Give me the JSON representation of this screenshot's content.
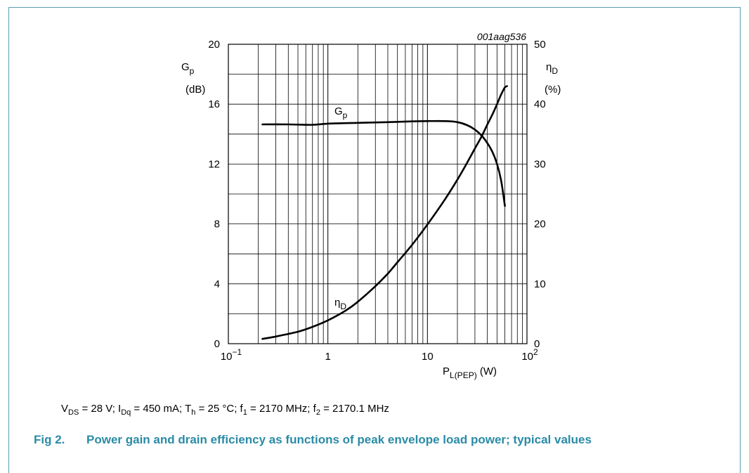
{
  "chart_data": {
    "type": "line",
    "figure_id": "001aag536",
    "x_axis": {
      "scale": "log",
      "range": [
        0.1,
        100
      ],
      "tick_labels": [
        {
          "value": 0.1,
          "base": "10",
          "exp": "−1"
        },
        {
          "value": 1,
          "base": "1",
          "exp": ""
        },
        {
          "value": 10,
          "base": "10",
          "exp": ""
        },
        {
          "value": 100,
          "base": "10",
          "exp": "2"
        }
      ],
      "label_main": "P",
      "label_sub": "L(PEP)",
      "label_unit": "(W)"
    },
    "y_left": {
      "range": [
        0,
        20
      ],
      "ticks": [
        0,
        4,
        8,
        12,
        16,
        20
      ],
      "label_main": "G",
      "label_sub": "p",
      "label_unit": "(dB)"
    },
    "y_right": {
      "range": [
        0,
        50
      ],
      "ticks": [
        0,
        10,
        20,
        30,
        40,
        50
      ],
      "label_main": "η",
      "label_sub": "D",
      "label_unit": "(%)"
    },
    "grid": true,
    "series": [
      {
        "name_main": "G",
        "name_sub": "p",
        "axis": "left",
        "points": [
          [
            0.22,
            14.65
          ],
          [
            0.4,
            14.65
          ],
          [
            0.7,
            14.62
          ],
          [
            1.0,
            14.7
          ],
          [
            2.0,
            14.75
          ],
          [
            4.0,
            14.8
          ],
          [
            7.0,
            14.85
          ],
          [
            10.0,
            14.87
          ],
          [
            15.0,
            14.87
          ],
          [
            20.0,
            14.8
          ],
          [
            25.0,
            14.6
          ],
          [
            30.0,
            14.3
          ],
          [
            35.0,
            13.9
          ],
          [
            40.0,
            13.4
          ],
          [
            45.0,
            12.8
          ],
          [
            50.0,
            12.0
          ],
          [
            55.0,
            10.9
          ],
          [
            60.0,
            9.2
          ]
        ]
      },
      {
        "name_main": "η",
        "name_sub": "D",
        "axis": "right",
        "points": [
          [
            0.22,
            0.8
          ],
          [
            0.3,
            1.2
          ],
          [
            0.5,
            2.0
          ],
          [
            0.7,
            2.8
          ],
          [
            1.0,
            3.9
          ],
          [
            1.5,
            5.5
          ],
          [
            2.0,
            7.0
          ],
          [
            3.0,
            9.6
          ],
          [
            4.0,
            11.7
          ],
          [
            5.0,
            13.6
          ],
          [
            7.0,
            16.5
          ],
          [
            10.0,
            19.9
          ],
          [
            15.0,
            24.1
          ],
          [
            20.0,
            27.4
          ],
          [
            25.0,
            30.2
          ],
          [
            30.0,
            32.6
          ],
          [
            35.0,
            34.6
          ],
          [
            40.0,
            36.6
          ],
          [
            45.0,
            38.3
          ],
          [
            50.0,
            40.0
          ],
          [
            55.0,
            41.6
          ],
          [
            60.0,
            42.8
          ],
          [
            63.0,
            43.0
          ]
        ]
      }
    ]
  },
  "conditions": {
    "vds_label": "V",
    "vds_sub": "DS",
    "vds_value": " = 28 V; ",
    "idq_label": "I",
    "idq_sub": "Dq",
    "idq_value": " = 450 mA; ",
    "th_label": "T",
    "th_sub": "h",
    "th_value": " = 25 °C; ",
    "f1_label": "f",
    "f1_sub": "1",
    "f1_value": " = 2170 MHz; ",
    "f2_label": "f",
    "f2_sub": "2",
    "f2_value": " = 2170.1 MHz"
  },
  "caption": {
    "fig_label": "Fig 2.",
    "text": "Power gain and drain efficiency as functions of peak envelope load power; typical values"
  },
  "colors": {
    "frame_border": "#5a9cb4",
    "caption": "#2a8ba6"
  }
}
